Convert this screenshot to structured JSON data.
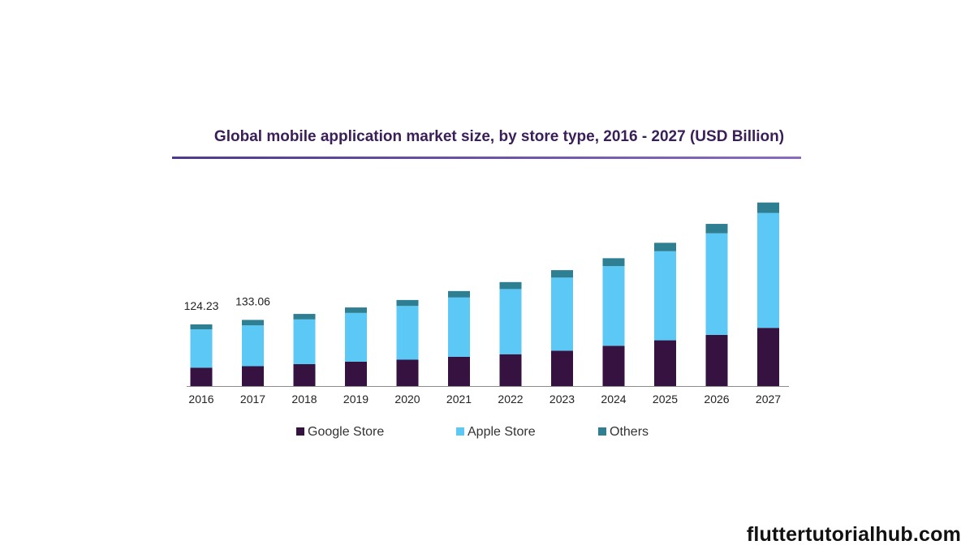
{
  "chart_data": {
    "type": "bar",
    "stacked": true,
    "title": "Global mobile application market size, by store type, 2016 - 2027 (USD Billion)",
    "xlabel": "",
    "ylabel": "",
    "ylim": [
      0,
      450
    ],
    "grid": false,
    "legend_position": "bottom",
    "categories": [
      "2016",
      "2017",
      "2018",
      "2019",
      "2020",
      "2021",
      "2022",
      "2023",
      "2024",
      "2025",
      "2026",
      "2027"
    ],
    "series": [
      {
        "name": "Google Store",
        "color": "#35123f",
        "values": [
          37,
          40,
          44,
          49,
          53,
          59,
          64,
          71,
          81,
          92,
          103,
          117
        ]
      },
      {
        "name": "Apple Store",
        "color": "#5bc8f5",
        "values": [
          77,
          82,
          90,
          98,
          108,
          119,
          131,
          147,
          160,
          179,
          204,
          231
        ]
      },
      {
        "name": "Others",
        "color": "#2f7f93",
        "values": [
          10,
          11,
          11,
          11,
          12,
          13,
          14,
          15,
          16,
          17,
          19,
          21
        ]
      }
    ],
    "data_labels": [
      {
        "category": "2016",
        "text": "124.23"
      },
      {
        "category": "2017",
        "text": "133.06"
      }
    ]
  },
  "watermark": "fluttertutorialhub.com"
}
